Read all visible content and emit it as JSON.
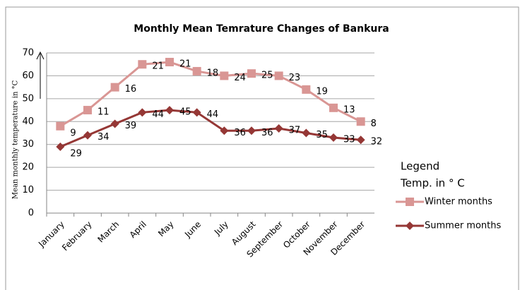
{
  "chart_data": {
    "type": "line",
    "title": "Monthly Mean Temrature Changes of Bankura",
    "y_label": "Mean monthly temperature in °C",
    "legend_title": "Legend",
    "legend_subtitle": "Temp. in ° C",
    "legend": "right",
    "grid": true,
    "categories": [
      "January",
      "February",
      "March",
      "April",
      "May",
      "June",
      "July",
      "August",
      "September",
      "October",
      "November",
      "December"
    ],
    "series": [
      {
        "name": "Winter months",
        "color": "#d99694",
        "marker": "square",
        "values": [
          38,
          45,
          55,
          65,
          66,
          62,
          60,
          61,
          60,
          54,
          46,
          40
        ],
        "point_labels": [
          "9",
          "11",
          "16",
          "21",
          "21",
          "18",
          "24",
          "25",
          "23",
          "19",
          "13",
          "8"
        ]
      },
      {
        "name": "Summer months",
        "color": "#953735",
        "marker": "diamond",
        "values": [
          29,
          34,
          39,
          44,
          45,
          44,
          36,
          36,
          37,
          35,
          33,
          32
        ]
      }
    ],
    "ylim": [
      0,
      70
    ],
    "yticks": [
      0,
      10,
      20,
      30,
      40,
      50,
      60,
      70
    ]
  }
}
